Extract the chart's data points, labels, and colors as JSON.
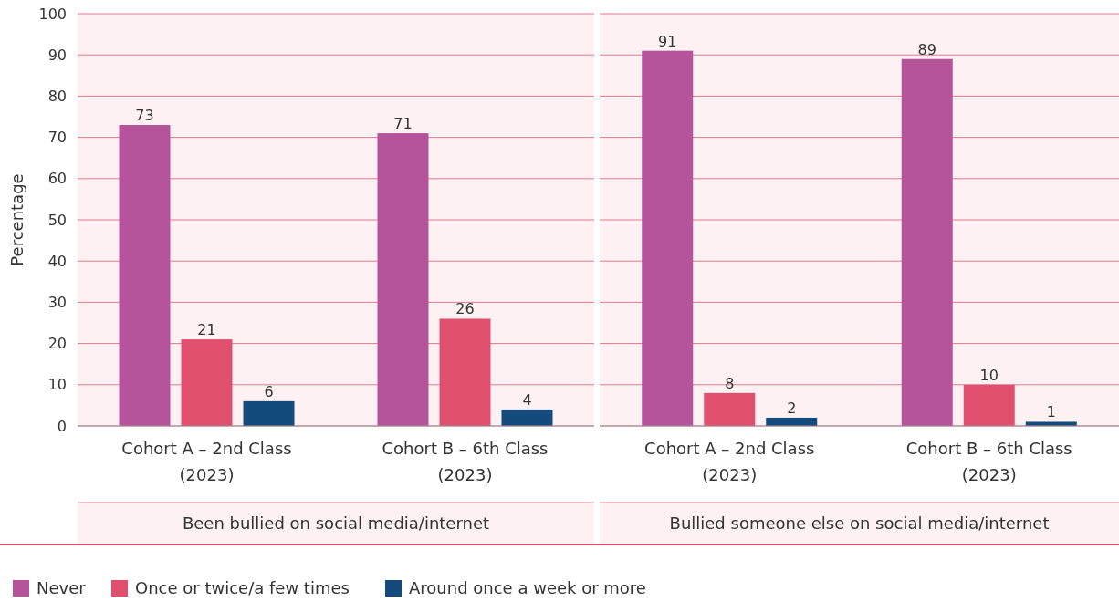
{
  "chart_data": [
    {
      "type": "bar",
      "title": "Been bullied on social media/internet",
      "ylabel": "Percentage",
      "categories": [
        "Cohort A – 2nd Class\n(2023)",
        "Cohort B – 6th Class\n(2023)"
      ],
      "series": [
        {
          "name": "Never",
          "color": "#b5539b",
          "values": [
            73,
            71
          ]
        },
        {
          "name": "Once or twice/a few times",
          "color": "#e0506e",
          "values": [
            21,
            26
          ]
        },
        {
          "name": "Around once a week or more",
          "color": "#154a7c",
          "values": [
            6,
            4
          ]
        }
      ],
      "ylim": [
        0,
        100
      ],
      "yticks": [
        0,
        10,
        20,
        30,
        40,
        50,
        60,
        70,
        80,
        90,
        100
      ],
      "grid": "y",
      "data_labels": true,
      "legend": "bottom"
    },
    {
      "type": "bar",
      "title": "Bullied someone else on social media/internet",
      "categories": [
        "Cohort A – 2nd Class\n(2023)",
        "Cohort B – 6th Class\n(2023)"
      ],
      "series": [
        {
          "color": "#b5539b",
          "values": [
            91,
            89
          ]
        },
        {
          "color": "#e0506e",
          "values": [
            8,
            10
          ]
        },
        {
          "color": "#154a7c",
          "values": [
            2,
            1
          ]
        }
      ],
      "ylim": [
        0,
        100
      ],
      "yticks": [
        0,
        10,
        20,
        30,
        40,
        50,
        60,
        70,
        80,
        90,
        100
      ],
      "grid": "y",
      "data_labels": true,
      "tick_labels": "x"
    }
  ]
}
